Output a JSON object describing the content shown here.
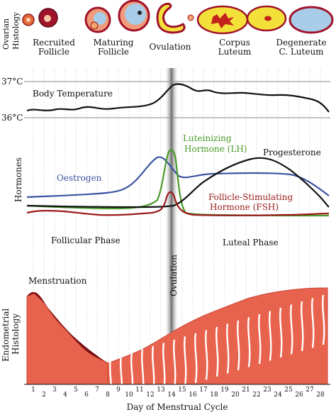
{
  "ovarian": {
    "side_label_1": "Ovarian",
    "side_label_2": "Histology",
    "stages": [
      {
        "line1": "Recruited",
        "line2": "Follicle"
      },
      {
        "line1": "Maturing",
        "line2": "Follicle"
      },
      {
        "line1": "Ovulation",
        "line2": ""
      },
      {
        "line1": "Corpus",
        "line2": "Luteum"
      },
      {
        "line1": "Degenerate",
        "line2": "C. Luteum"
      }
    ]
  },
  "temperature": {
    "label_high": "37°C",
    "label_low": "36°C",
    "title": "Body Temperature"
  },
  "hormones": {
    "axis_label": "Hormones",
    "lh_line1": "Luteinizing",
    "lh_line2": "Hormone (LH)",
    "progesterone": "Progesterone",
    "oestrogen": "Oestrogen",
    "fsh_line1": "Follicle-Stimulating",
    "fsh_line2": "Hormone (FSH)"
  },
  "phases": {
    "follicular": "Follicular Phase",
    "luteal": "Luteal Phase",
    "ovulation": "Ovulation"
  },
  "endometrium": {
    "side_label_1": "Endometrial",
    "side_label_2": "Histology",
    "menstruation": "Menstruation"
  },
  "x_axis": {
    "title": "Day of Menstrual Cycle",
    "days": [
      "1",
      "2",
      "3",
      "4",
      "5",
      "6",
      "7",
      "8",
      "9",
      "10",
      "11",
      "12",
      "13",
      "14",
      "15",
      "16",
      "17",
      "18",
      "19",
      "20",
      "21",
      "22",
      "23",
      "24",
      "25",
      "26",
      "27",
      "28"
    ]
  },
  "colors": {
    "temperature": "#111111",
    "oestrogen": "#3b55a0",
    "lh": "#4a9a2a",
    "fsh": "#9b1b1b",
    "progesterone": "#111111",
    "endometrium": "#e8634e",
    "follicle_fill": "#f3a36a",
    "corpus_fill": "#f3e13a",
    "degenerate_fill": "#a9cde8"
  }
}
